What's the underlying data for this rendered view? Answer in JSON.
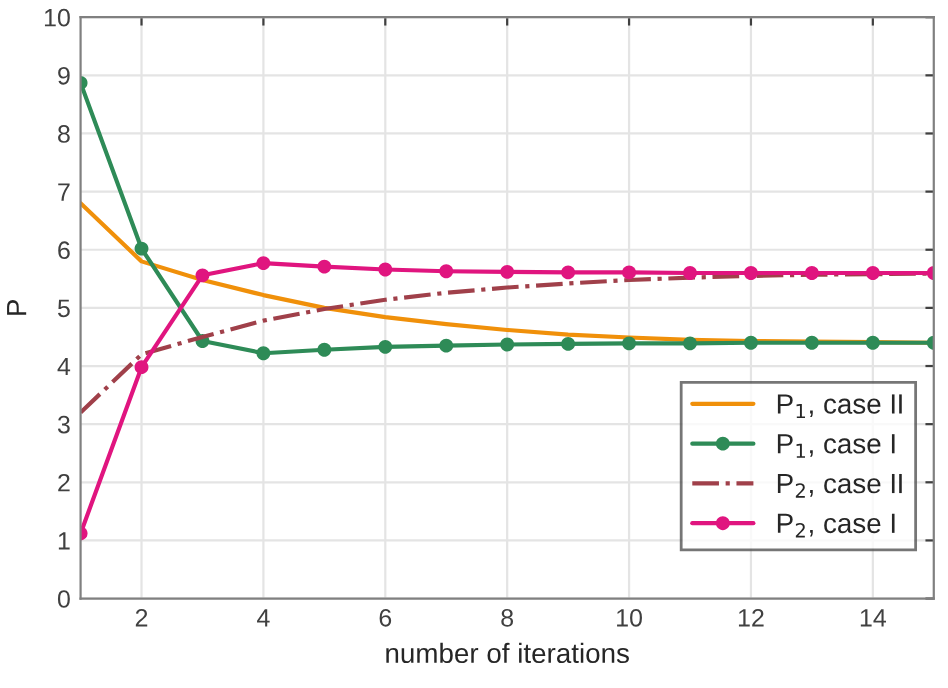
{
  "chart_data": {
    "type": "line",
    "xlabel": "number of iterations",
    "ylabel": "P",
    "x": [
      1,
      2,
      3,
      4,
      5,
      6,
      7,
      8,
      9,
      10,
      11,
      12,
      13,
      14,
      15
    ],
    "xlim": [
      1,
      15
    ],
    "xticks": [
      2,
      4,
      6,
      8,
      10,
      12,
      14
    ],
    "ylim": [
      0,
      10
    ],
    "yticks": [
      0,
      1,
      2,
      3,
      4,
      5,
      6,
      7,
      8,
      9,
      10
    ],
    "grid": true,
    "legend": "bottom right",
    "series": [
      {
        "name": "P$_{1}$, case II",
        "color": "#f0900a",
        "marker": "none",
        "line_style": "solid",
        "values": [
          6.8,
          5.8,
          5.48,
          5.22,
          5.0,
          4.84,
          4.72,
          4.62,
          4.54,
          4.49,
          4.45,
          4.43,
          4.42,
          4.41,
          4.4
        ]
      },
      {
        "name": "P$_{1}$, case I",
        "color": "#2e8b57",
        "marker": "circle",
        "line_style": "solid",
        "values": [
          8.87,
          6.02,
          4.43,
          4.22,
          4.28,
          4.33,
          4.35,
          4.37,
          4.38,
          4.39,
          4.39,
          4.4,
          4.4,
          4.4,
          4.4
        ]
      },
      {
        "name": "P$_{2}$, case II",
        "color": "#a0404a",
        "marker": "none",
        "line_style": "dashdot",
        "values": [
          3.2,
          4.2,
          4.5,
          4.78,
          4.98,
          5.14,
          5.26,
          5.35,
          5.42,
          5.48,
          5.52,
          5.55,
          5.57,
          5.58,
          5.59
        ]
      },
      {
        "name": "P$_{2}$, case I",
        "color": "#e0157f",
        "marker": "circle",
        "line_style": "solid",
        "values": [
          1.12,
          3.98,
          5.56,
          5.77,
          5.71,
          5.66,
          5.63,
          5.62,
          5.61,
          5.61,
          5.6,
          5.6,
          5.6,
          5.6,
          5.6
        ]
      }
    ]
  }
}
